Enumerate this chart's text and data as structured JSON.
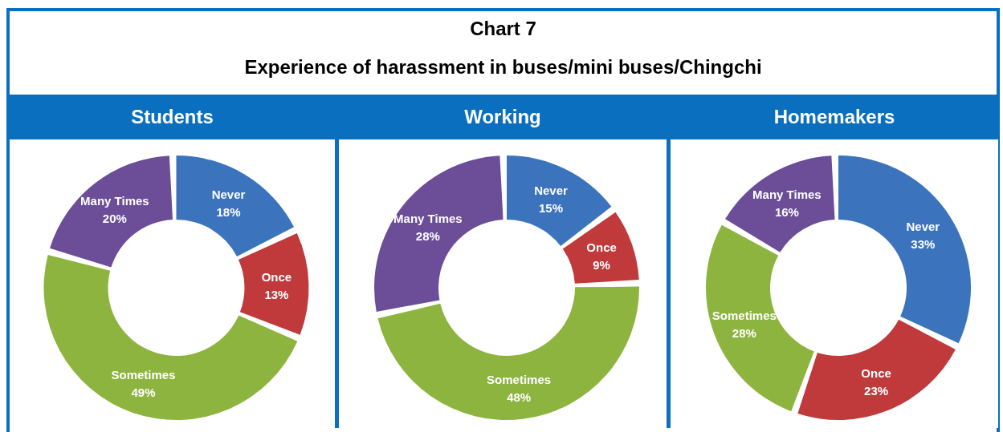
{
  "chart_data": [
    {
      "type": "other",
      "title": "Chart 7",
      "subtitle": "Experience of harassment in buses/mini buses/Chingchi"
    },
    {
      "type": "donut",
      "title": "Students",
      "categories": [
        "Never",
        "Once",
        "Sometimes",
        "Many Times"
      ],
      "values": [
        18,
        13,
        49,
        20
      ],
      "value_labels": [
        "18%",
        "13%",
        "49%",
        "20%"
      ],
      "colors": [
        "#3b73bd",
        "#c0393b",
        "#8cb43f",
        "#6b4d98"
      ],
      "legend": false
    },
    {
      "type": "donut",
      "title": "Working",
      "categories": [
        "Never",
        "Once",
        "Sometimes",
        "Many Times"
      ],
      "values": [
        15,
        9,
        48,
        28
      ],
      "value_labels": [
        "15%",
        "9%",
        "48%",
        "28%"
      ],
      "colors": [
        "#3b73bd",
        "#c0393b",
        "#8cb43f",
        "#6b4d98"
      ],
      "legend": false
    },
    {
      "type": "donut",
      "title": "Homemakers",
      "categories": [
        "Never",
        "Once",
        "Sometimes",
        "Many Times"
      ],
      "values": [
        33,
        23,
        28,
        16
      ],
      "value_labels": [
        "33%",
        "23%",
        "28%",
        "16%"
      ],
      "colors": [
        "#3b73bd",
        "#c0393b",
        "#8cb43f",
        "#6b4d98"
      ],
      "legend": false
    }
  ]
}
